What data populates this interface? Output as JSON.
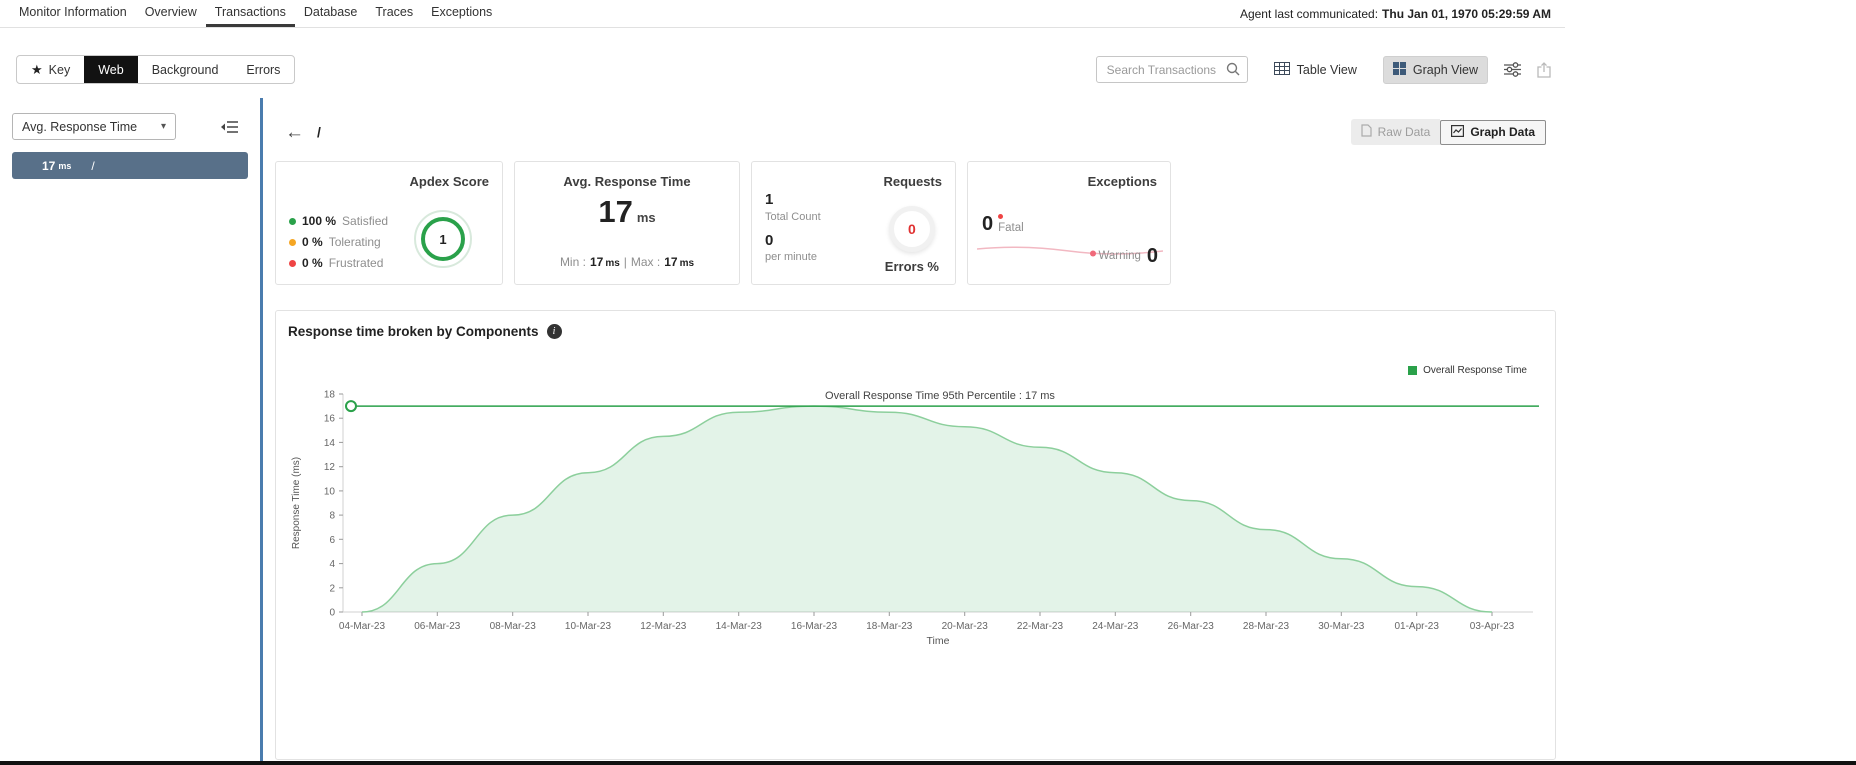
{
  "colors": {
    "green": "#2aa14a",
    "orange": "#f5a623",
    "red": "#ef4444",
    "slate_selected_row": "#587089",
    "divider_blue": "#4a7cae",
    "pink_sparkline": "#f2b8c2"
  },
  "icons": {
    "star": "★",
    "caret": "▾",
    "back_arrow": "←",
    "info": "i"
  },
  "top_nav": {
    "tabs": [
      {
        "label": "Monitor Information"
      },
      {
        "label": "Overview"
      },
      {
        "label": "Transactions"
      },
      {
        "label": "Database"
      },
      {
        "label": "Traces"
      },
      {
        "label": "Exceptions"
      }
    ],
    "agent_label": "Agent last communicated:",
    "agent_value": "Thu Jan 01, 1970 05:29:59 AM"
  },
  "toolbar": {
    "segments": [
      {
        "label": "Key"
      },
      {
        "label": "Web"
      },
      {
        "label": "Background"
      },
      {
        "label": "Errors"
      }
    ],
    "search_placeholder": "Search Transactions",
    "table_view_label": "Table View",
    "graph_view_label": "Graph View"
  },
  "sidebar": {
    "metric_dropdown_value": "Avg. Response Time",
    "items": [
      {
        "value": "17",
        "unit": "ms",
        "name": "/"
      }
    ]
  },
  "main": {
    "breadcrumb": "/",
    "raw_data_label": "Raw Data",
    "graph_data_label": "Graph Data",
    "cards": {
      "apdex": {
        "title": "Apdex Score",
        "score": "1",
        "legend": [
          {
            "pct": "100 %",
            "label": "Satisfied"
          },
          {
            "pct": "0 %",
            "label": "Tolerating"
          },
          {
            "pct": "0 %",
            "label": "Frustrated"
          }
        ]
      },
      "avg_response_time": {
        "title": "Avg. Response Time",
        "value": "17",
        "unit": "ms",
        "min_label": "Min :",
        "min_value": "17",
        "min_unit": "ms",
        "sep": "|",
        "max_label": "Max :",
        "max_value": "17",
        "max_unit": "ms"
      },
      "requests": {
        "title": "Requests",
        "total_count": "1",
        "total_count_label": "Total Count",
        "per_minute": "0",
        "per_minute_label": "per minute",
        "errors_value": "0",
        "errors_label": "Errors %"
      },
      "exceptions": {
        "title": "Exceptions",
        "fatal_value": "0",
        "fatal_label": "Fatal",
        "warning_label": "Warning",
        "warning_value": "0"
      }
    }
  },
  "chart_data": {
    "type": "area",
    "title": "Response time broken by Components",
    "legend": [
      {
        "name": "Overall Response Time",
        "color": "#2aa14a"
      }
    ],
    "xlabel": "Time",
    "ylabel": "Response Time (ms)",
    "ylim": [
      0,
      18
    ],
    "yticks": [
      0,
      2,
      4,
      6,
      8,
      10,
      12,
      14,
      16,
      18
    ],
    "x": [
      "04-Mar-23",
      "06-Mar-23",
      "08-Mar-23",
      "10-Mar-23",
      "12-Mar-23",
      "14-Mar-23",
      "16-Mar-23",
      "18-Mar-23",
      "20-Mar-23",
      "22-Mar-23",
      "24-Mar-23",
      "26-Mar-23",
      "28-Mar-23",
      "30-Mar-23",
      "01-Apr-23",
      "03-Apr-23"
    ],
    "series": [
      {
        "name": "Overall Response Time",
        "values": [
          0,
          4,
          8,
          11.5,
          14.5,
          16.5,
          17,
          16.5,
          15.3,
          13.6,
          11.5,
          9.2,
          6.8,
          4.4,
          2.1,
          0
        ]
      }
    ],
    "percentile_line": {
      "value": 17,
      "label": "Overall Response Time 95th Percentile : 17 ms"
    }
  }
}
